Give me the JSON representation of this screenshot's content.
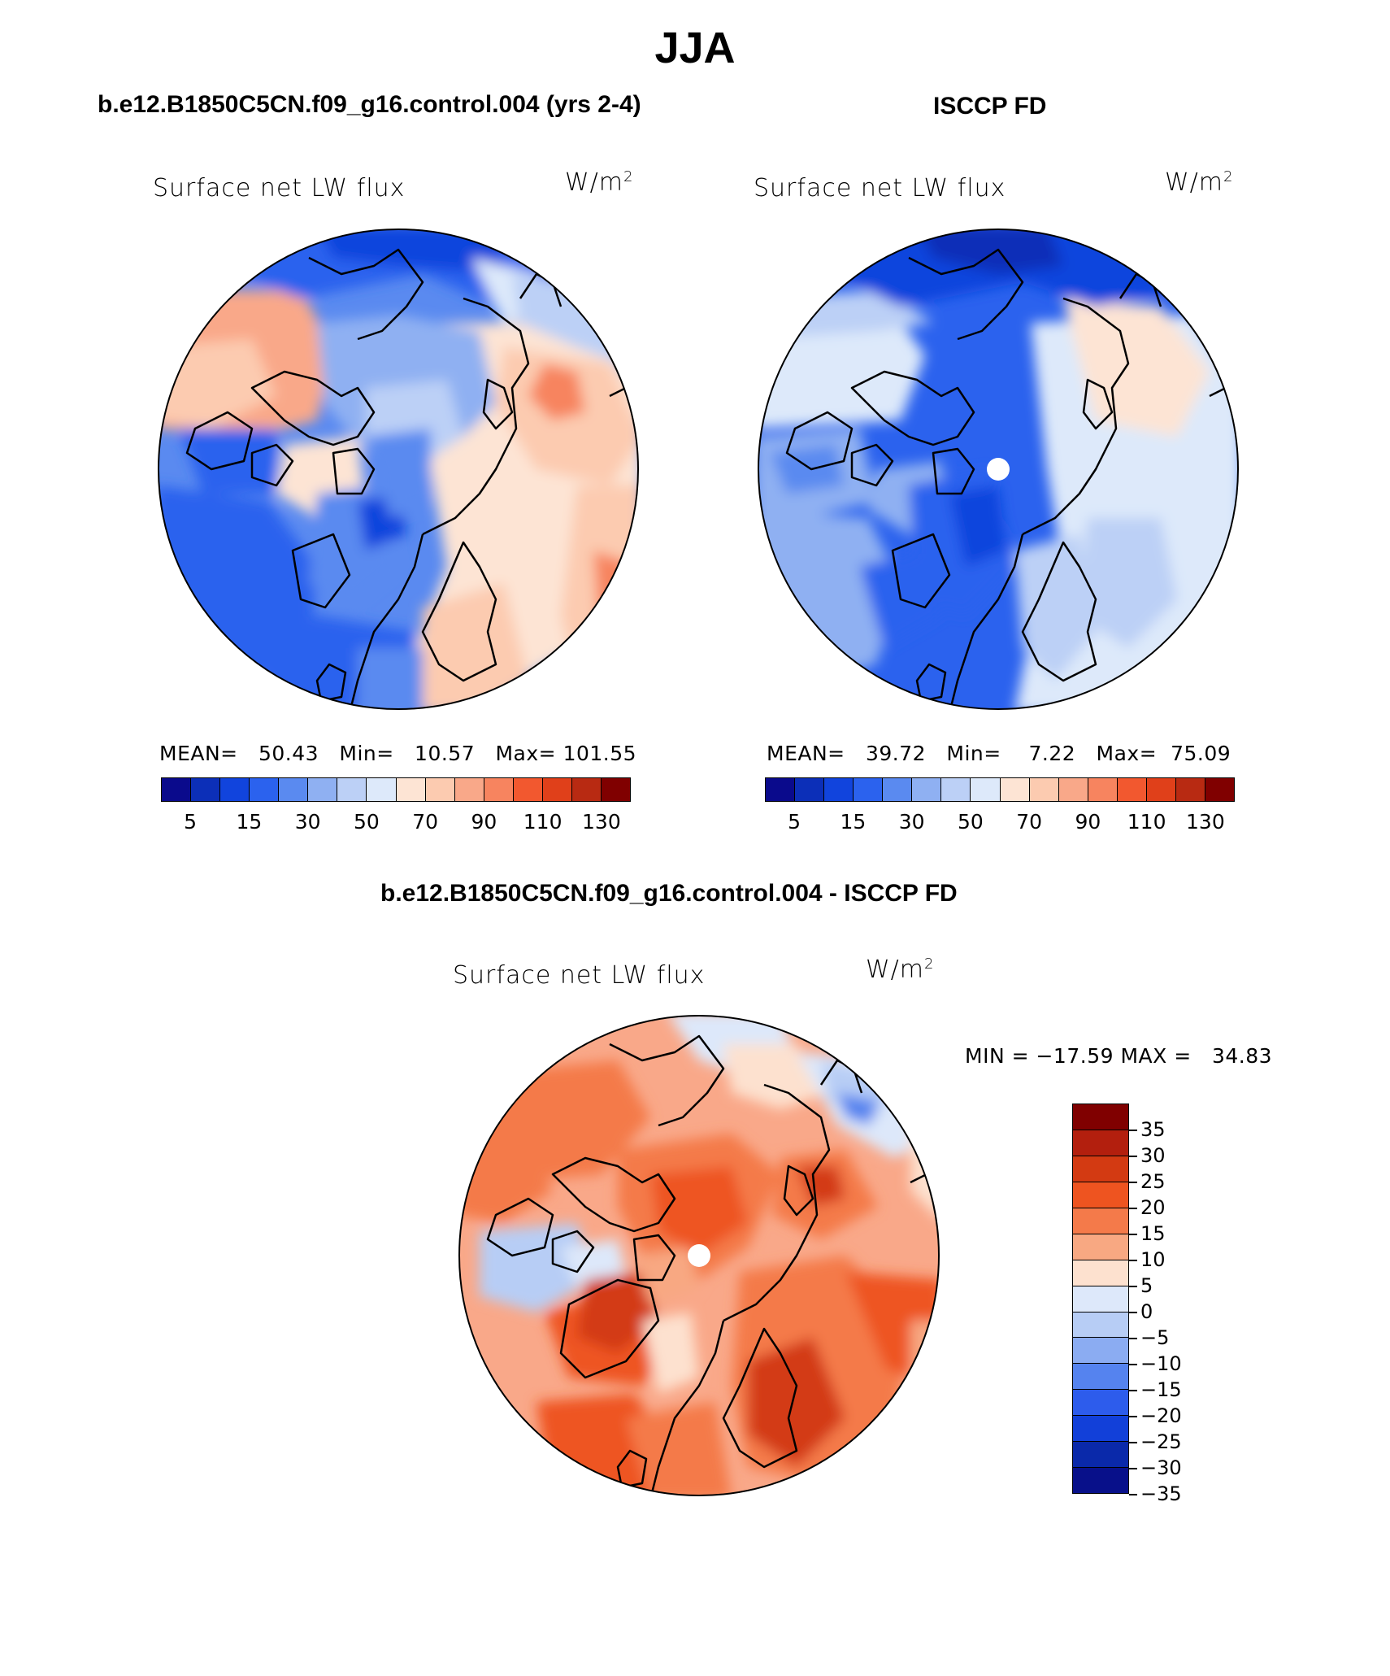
{
  "figure": {
    "season": "JJA",
    "left_panel": {
      "case_name": "b.e12.B1850C5CN.f09_g16.control.004 (yrs 2-4)",
      "variable": "Surface net LW flux",
      "units_base": "W/m",
      "units_exp": "2",
      "stats": {
        "mean_label": "MEAN=",
        "mean": "50.43",
        "min_label": "Min=",
        "min": "10.57",
        "max_label": "Max=",
        "max": "101.55"
      }
    },
    "right_panel": {
      "case_name": "ISCCP FD",
      "variable": "Surface net LW flux",
      "units_base": "W/m",
      "units_exp": "2",
      "stats": {
        "mean_label": "MEAN=",
        "mean": "39.72",
        "min_label": "Min=",
        "min": "7.22",
        "max_label": "Max=",
        "max": "75.09"
      }
    },
    "diff_panel": {
      "title": "b.e12.B1850C5CN.f09_g16.control.004 - ISCCP FD",
      "variable": "Surface net LW flux",
      "units_base": "W/m",
      "units_exp": "2",
      "minmax": "MIN = −17.59 MAX =   34.83"
    },
    "abs_colorbar": {
      "colors": [
        "#0a0a8c",
        "#0c2fb8",
        "#1144dd",
        "#2b62ee",
        "#5a8af0",
        "#8fb0f2",
        "#bcd0f6",
        "#dde9fa",
        "#fde4d4",
        "#fccbb0",
        "#f9a889",
        "#f7845f",
        "#f2582f",
        "#e0401a",
        "#b82a12",
        "#800000"
      ],
      "tick_labels": [
        "5",
        "15",
        "30",
        "50",
        "70",
        "90",
        "110",
        "130"
      ]
    },
    "diff_colorbar": {
      "colors": [
        "#800000",
        "#b31f0e",
        "#d33a12",
        "#ee5420",
        "#f47a4a",
        "#f8a882",
        "#fde1cf",
        "#dde8fa",
        "#b7cdf5",
        "#8bacf2",
        "#5583ef",
        "#2d5cec",
        "#1240d9",
        "#0a29aa",
        "#08108a"
      ],
      "tick_labels": [
        "35",
        "30",
        "25",
        "20",
        "15",
        "10",
        "5",
        "0",
        "−5",
        "−10",
        "−15",
        "−20",
        "−25",
        "−30",
        "−35"
      ]
    }
  }
}
